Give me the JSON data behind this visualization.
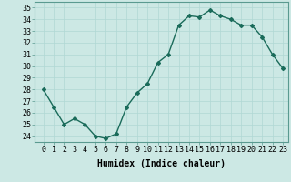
{
  "x": [
    0,
    1,
    2,
    3,
    4,
    5,
    6,
    7,
    8,
    9,
    10,
    11,
    12,
    13,
    14,
    15,
    16,
    17,
    18,
    19,
    20,
    21,
    22,
    23
  ],
  "y": [
    28.0,
    26.5,
    25.0,
    25.5,
    25.0,
    24.0,
    23.8,
    24.2,
    26.5,
    27.7,
    28.5,
    30.3,
    31.0,
    33.5,
    34.3,
    34.2,
    34.8,
    34.3,
    34.0,
    33.5,
    33.5,
    32.5,
    31.0,
    29.8
  ],
  "line_color": "#1a6b5a",
  "marker": "D",
  "marker_size": 2,
  "bg_color": "#cce8e4",
  "grid_color": "#b0d8d4",
  "xlabel": "Humidex (Indice chaleur)",
  "ylim": [
    23.5,
    35.5
  ],
  "yticks": [
    24,
    25,
    26,
    27,
    28,
    29,
    30,
    31,
    32,
    33,
    34,
    35
  ],
  "xticks": [
    0,
    1,
    2,
    3,
    4,
    5,
    6,
    7,
    8,
    9,
    10,
    11,
    12,
    13,
    14,
    15,
    16,
    17,
    18,
    19,
    20,
    21,
    22,
    23
  ],
  "xlabel_fontsize": 7,
  "tick_fontsize": 6,
  "line_width": 1.0
}
